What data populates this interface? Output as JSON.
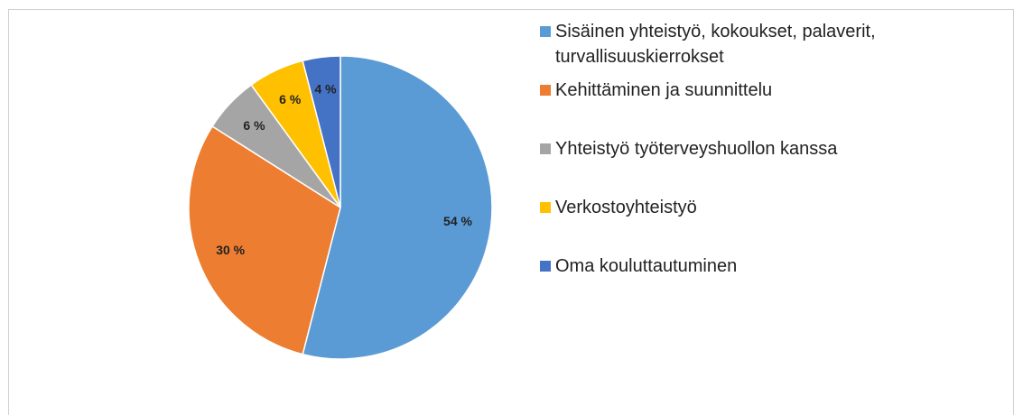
{
  "chart_data": {
    "type": "pie",
    "categories": [
      "Sisäinen yhteistyö, kokoukset, palaverit, turvallisuuskierrokset",
      "Kehittäminen ja suunnittelu",
      "Yhteistyö työterveyshuollon kanssa",
      "Verkostoyhteistyö",
      "Oma kouluttautuminen"
    ],
    "values": [
      54,
      30,
      6,
      6,
      4
    ],
    "value_labels": [
      "54 %",
      "30 %",
      "6 %",
      "6 %",
      "4 %"
    ],
    "colors": [
      "#5b9bd5",
      "#ed7d31",
      "#a5a5a5",
      "#ffc000",
      "#4472c4"
    ],
    "legend": "right"
  }
}
